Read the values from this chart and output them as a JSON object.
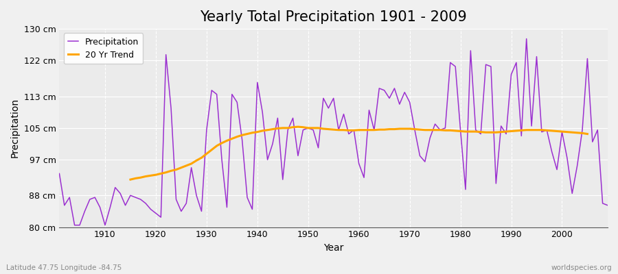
{
  "title": "Yearly Total Precipitation 1901 - 2009",
  "xlabel": "Year",
  "ylabel": "Precipitation",
  "lat_lon_label": "Latitude 47.75 Longitude -84.75",
  "watermark": "worldspecies.org",
  "years": [
    1901,
    1902,
    1903,
    1904,
    1905,
    1906,
    1907,
    1908,
    1909,
    1910,
    1911,
    1912,
    1913,
    1914,
    1915,
    1916,
    1917,
    1918,
    1919,
    1920,
    1921,
    1922,
    1923,
    1924,
    1925,
    1926,
    1927,
    1928,
    1929,
    1930,
    1931,
    1932,
    1933,
    1934,
    1935,
    1936,
    1937,
    1938,
    1939,
    1940,
    1941,
    1942,
    1943,
    1944,
    1945,
    1946,
    1947,
    1948,
    1949,
    1950,
    1951,
    1952,
    1953,
    1954,
    1955,
    1956,
    1957,
    1958,
    1959,
    1960,
    1961,
    1962,
    1963,
    1964,
    1965,
    1966,
    1967,
    1968,
    1969,
    1970,
    1971,
    1972,
    1973,
    1974,
    1975,
    1976,
    1977,
    1978,
    1979,
    1980,
    1981,
    1982,
    1983,
    1984,
    1985,
    1986,
    1987,
    1988,
    1989,
    1990,
    1991,
    1992,
    1993,
    1994,
    1995,
    1996,
    1997,
    1998,
    1999,
    2000,
    2001,
    2002,
    2003,
    2004,
    2005,
    2006,
    2007,
    2008,
    2009
  ],
  "precip": [
    93.5,
    85.5,
    87.5,
    80.5,
    80.5,
    84.0,
    87.0,
    87.5,
    85.0,
    80.5,
    85.0,
    90.0,
    88.5,
    85.5,
    88.0,
    87.5,
    87.0,
    86.0,
    84.5,
    83.5,
    82.5,
    123.5,
    110.0,
    87.0,
    84.0,
    86.0,
    95.0,
    88.0,
    84.0,
    104.5,
    114.5,
    113.5,
    97.0,
    85.0,
    113.5,
    111.5,
    102.0,
    87.5,
    84.5,
    116.5,
    109.0,
    97.0,
    101.0,
    107.5,
    92.0,
    104.5,
    107.5,
    98.0,
    104.5,
    105.0,
    104.5,
    100.0,
    112.5,
    110.0,
    112.5,
    104.5,
    108.5,
    103.5,
    104.5,
    96.0,
    92.5,
    109.5,
    104.5,
    115.0,
    114.5,
    112.5,
    115.0,
    111.0,
    114.0,
    111.5,
    104.5,
    98.0,
    96.5,
    102.5,
    106.0,
    104.5,
    105.0,
    121.5,
    120.5,
    104.5,
    89.5,
    124.5,
    104.5,
    103.5,
    121.0,
    120.5,
    91.0,
    105.5,
    103.5,
    118.5,
    121.5,
    103.0,
    127.5,
    105.5,
    123.0,
    104.0,
    104.5,
    99.0,
    94.5,
    104.0,
    97.5,
    88.5,
    95.5,
    104.5,
    122.5,
    101.5,
    104.5,
    86.0,
    85.5
  ],
  "trend": [
    null,
    null,
    null,
    null,
    null,
    null,
    null,
    null,
    null,
    null,
    null,
    null,
    null,
    null,
    92.0,
    92.3,
    92.5,
    92.8,
    93.0,
    93.2,
    93.5,
    93.8,
    94.2,
    94.5,
    95.0,
    95.5,
    96.0,
    96.8,
    97.5,
    98.5,
    99.5,
    100.5,
    101.2,
    101.8,
    102.3,
    102.8,
    103.2,
    103.5,
    103.8,
    104.0,
    104.3,
    104.5,
    104.7,
    104.9,
    105.0,
    105.0,
    105.2,
    105.3,
    105.2,
    105.0,
    105.0,
    105.0,
    104.8,
    104.7,
    104.6,
    104.5,
    104.5,
    104.4,
    104.4,
    104.5,
    104.5,
    104.5,
    104.5,
    104.6,
    104.6,
    104.7,
    104.7,
    104.8,
    104.8,
    104.8,
    104.7,
    104.6,
    104.5,
    104.5,
    104.5,
    104.5,
    104.4,
    104.4,
    104.3,
    104.2,
    104.1,
    104.1,
    104.1,
    104.0,
    103.9,
    103.9,
    103.9,
    104.0,
    104.1,
    104.2,
    104.3,
    104.4,
    104.5,
    104.5,
    104.5,
    104.5,
    104.4,
    104.3,
    104.2,
    104.1,
    104.0,
    103.9,
    103.8,
    103.7,
    103.5
  ],
  "precip_color": "#9B30D0",
  "trend_color": "#FFA500",
  "bg_color": "#F0F0F0",
  "plot_bg_color": "#EBEBEB",
  "grid_color": "#FFFFFF",
  "ylim": [
    80,
    130
  ],
  "yticks": [
    80,
    88,
    97,
    105,
    113,
    122,
    130
  ],
  "ytick_labels": [
    "80 cm",
    "88 cm",
    "97 cm",
    "105 cm",
    "113 cm",
    "122 cm",
    "130 cm"
  ],
  "title_fontsize": 15,
  "axis_fontsize": 10,
  "tick_fontsize": 9,
  "legend_fontsize": 9
}
